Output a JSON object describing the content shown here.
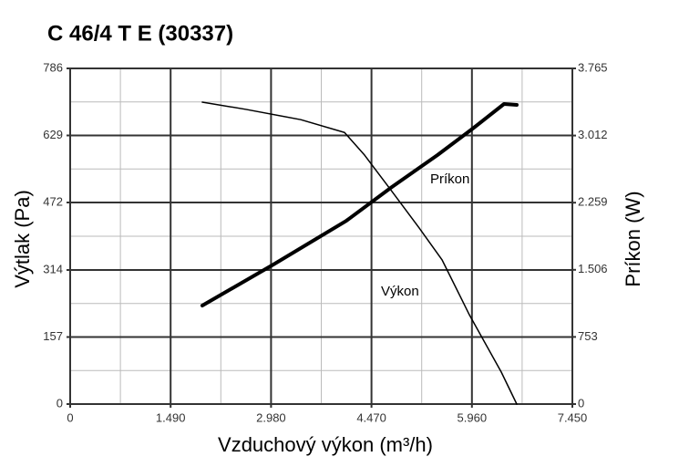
{
  "chart_data": {
    "type": "line",
    "title": "C 46/4 T E (30337)",
    "x_label": "Vzduchový výkon (m³/h)",
    "y_label": "Výtlak (Pa)",
    "y2_label": "Príkon (W)",
    "xlim": [
      0,
      7450
    ],
    "xticks": [
      0,
      {
        "value": 1490,
        "label": "1.490"
      },
      {
        "value": 2980,
        "label": "2.980"
      },
      {
        "value": 4470,
        "label": "4.470"
      },
      {
        "value": 5960,
        "label": "5.960"
      },
      {
        "value": 7450,
        "label": "7.450"
      }
    ],
    "ylim": [
      0,
      786
    ],
    "yticks": [
      0,
      157,
      314,
      472,
      629,
      786
    ],
    "y2lim": [
      0,
      3765
    ],
    "y2ticks": [
      0,
      753,
      {
        "value": 1506,
        "label": "1.506"
      },
      {
        "value": 2259,
        "label": "2.259"
      },
      {
        "value": 3012,
        "label": "3.012"
      },
      {
        "value": 3765,
        "label": "3.765"
      }
    ],
    "grid": true,
    "minor_grid": true,
    "series": [
      {
        "name": "Výkon",
        "color": "#000000",
        "width": 1.5,
        "x": [
          1960,
          2609,
          3421,
          4070,
          4367,
          4773,
          5179,
          5516,
          5922,
          6395,
          6625
        ],
        "values": [
          707,
          690,
          666,
          636,
          583,
          498,
          412,
          338,
          209,
          75,
          0
        ]
      },
      {
        "name": "Príkon",
        "color": "#000000",
        "width": 4,
        "axis": "y2",
        "x": [
          1960,
          3015,
          4097,
          4773,
          5449,
          5989,
          6436,
          6625
        ],
        "values": [
          1105,
          1565,
          2056,
          2435,
          2793,
          3100,
          3366,
          3356
        ]
      }
    ]
  }
}
